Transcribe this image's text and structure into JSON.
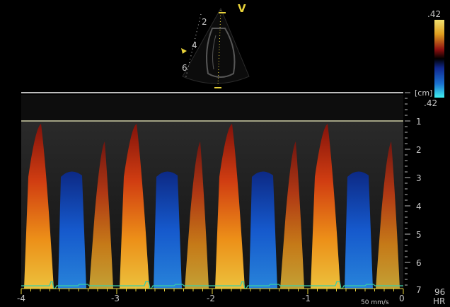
{
  "sector": {
    "view_marker": "V",
    "depth_ticks": [
      "2",
      "4",
      "6"
    ]
  },
  "color_scale": {
    "top_value": ".42",
    "bottom_value": ".42",
    "colors": {
      "top": "#e8d050",
      "mid_warm": "#a01010",
      "mid_cool": "#102890",
      "bottom": "#30e0f0"
    }
  },
  "mmode": {
    "unit": "[cm]",
    "depth_labels": [
      "1",
      "2",
      "3",
      "4",
      "5",
      "6",
      "7"
    ],
    "time_labels": [
      "-4",
      "-3",
      "-2",
      "-1",
      "0"
    ],
    "sweep_speed": "50 mm/s",
    "heart_rate_value": "96",
    "heart_rate_label": "HR",
    "colors": {
      "flow_toward": "#ff7a10",
      "flow_away": "#1560e0",
      "ecg": "#38d0a8"
    }
  }
}
